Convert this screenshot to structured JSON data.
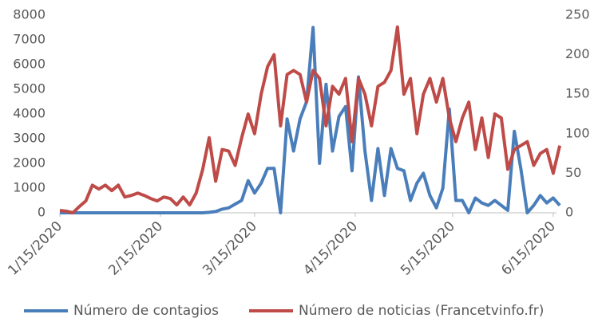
{
  "chart_data": {
    "type": "line",
    "x": [
      "1/15/2020",
      "1/17/2020",
      "1/19/2020",
      "1/21/2020",
      "1/23/2020",
      "1/25/2020",
      "1/27/2020",
      "1/29/2020",
      "1/31/2020",
      "2/2/2020",
      "2/4/2020",
      "2/6/2020",
      "2/8/2020",
      "2/10/2020",
      "2/12/2020",
      "2/14/2020",
      "2/16/2020",
      "2/18/2020",
      "2/20/2020",
      "2/22/2020",
      "2/24/2020",
      "2/26/2020",
      "2/28/2020",
      "3/1/2020",
      "3/3/2020",
      "3/5/2020",
      "3/7/2020",
      "3/9/2020",
      "3/11/2020",
      "3/13/2020",
      "3/15/2020",
      "3/17/2020",
      "3/19/2020",
      "3/21/2020",
      "3/23/2020",
      "3/25/2020",
      "3/27/2020",
      "3/29/2020",
      "3/31/2020",
      "4/2/2020",
      "4/4/2020",
      "4/6/2020",
      "4/8/2020",
      "4/10/2020",
      "4/12/2020",
      "4/14/2020",
      "4/16/2020",
      "4/18/2020",
      "4/20/2020",
      "4/22/2020",
      "4/24/2020",
      "4/26/2020",
      "4/28/2020",
      "4/30/2020",
      "5/2/2020",
      "5/4/2020",
      "5/6/2020",
      "5/8/2020",
      "5/10/2020",
      "5/12/2020",
      "5/14/2020",
      "5/16/2020",
      "5/18/2020",
      "5/20/2020",
      "5/22/2020",
      "5/24/2020",
      "5/26/2020",
      "5/28/2020",
      "5/30/2020",
      "6/1/2020",
      "6/3/2020",
      "6/5/2020",
      "6/7/2020",
      "6/9/2020",
      "6/11/2020",
      "6/13/2020",
      "6/15/2020",
      "6/17/2020"
    ],
    "series": [
      {
        "name": "Número de contagios",
        "color": "#4a7ebb",
        "axis": "y",
        "values": [
          0,
          0,
          0,
          0,
          0,
          0,
          0,
          0,
          0,
          0,
          0,
          0,
          0,
          0,
          0,
          0,
          0,
          0,
          0,
          0,
          0,
          0,
          0,
          20,
          50,
          150,
          200,
          350,
          500,
          1300,
          800,
          1200,
          1800,
          1800,
          0,
          3800,
          2500,
          3800,
          4500,
          7500,
          2000,
          5200,
          2500,
          3900,
          4300,
          1700,
          5500,
          2500,
          500,
          2600,
          700,
          2600,
          1800,
          1700,
          500,
          1200,
          1600,
          700,
          200,
          1000,
          4200,
          500,
          500,
          0,
          600,
          400,
          300,
          500,
          300,
          100,
          3300,
          1800,
          0,
          300,
          700,
          400,
          600,
          300
        ]
      },
      {
        "name": "Número de noticias (Francetvinfo.fr)",
        "color": "#be4b48",
        "axis": "y2",
        "values": [
          3,
          2,
          0,
          8,
          15,
          35,
          30,
          35,
          28,
          35,
          20,
          22,
          25,
          22,
          18,
          15,
          20,
          18,
          10,
          20,
          10,
          25,
          55,
          95,
          40,
          80,
          78,
          60,
          95,
          125,
          100,
          150,
          185,
          200,
          110,
          175,
          180,
          175,
          140,
          180,
          170,
          110,
          160,
          150,
          170,
          90,
          170,
          150,
          110,
          160,
          165,
          180,
          235,
          150,
          170,
          100,
          150,
          170,
          140,
          170,
          120,
          90,
          120,
          140,
          80,
          120,
          70,
          125,
          120,
          55,
          80,
          85,
          90,
          60,
          75,
          80,
          50,
          85
        ]
      }
    ],
    "xlim": [
      "1/15/2020",
      "6/16/2020"
    ],
    "xticks": [
      "1/15/2020",
      "2/15/2020",
      "3/15/2020",
      "4/15/2020",
      "5/15/2020",
      "6/15/2020"
    ],
    "ylim": [
      0,
      8000
    ],
    "yticks": [
      0,
      1000,
      2000,
      3000,
      4000,
      5000,
      6000,
      7000,
      8000
    ],
    "y2lim": [
      0,
      250
    ],
    "y2ticks": [
      0,
      50,
      100,
      150,
      200,
      250
    ],
    "grid": false,
    "legend": "bottom"
  }
}
